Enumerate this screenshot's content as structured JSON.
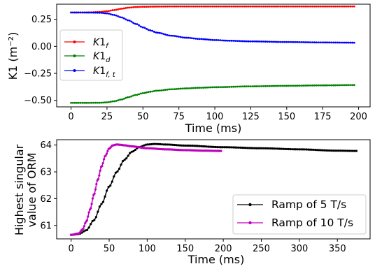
{
  "chart_data": [
    {
      "type": "line",
      "title": "",
      "xlabel": "Time (ms)",
      "ylabel": "K1 (m⁻²)",
      "xlim": [
        -10,
        208
      ],
      "ylim": [
        -0.56,
        0.39
      ],
      "xticks": [
        0,
        25,
        50,
        75,
        100,
        125,
        150,
        175,
        200
      ],
      "yticks": [
        -0.5,
        -0.25,
        0.0,
        0.25
      ],
      "ytick_labels": [
        "−0.50",
        "−0.25",
        "0.00",
        "0.25"
      ],
      "grid": false,
      "legend_position": "center-left",
      "series": [
        {
          "name": "K1_f",
          "color": "#ff0000",
          "marker": "dot",
          "x": [
            0,
            10,
            15,
            20,
            25,
            30,
            35,
            40,
            45,
            50,
            60,
            70,
            80,
            100,
            125,
            150,
            175,
            197
          ],
          "y": [
            0.313,
            0.313,
            0.315,
            0.318,
            0.325,
            0.336,
            0.348,
            0.358,
            0.364,
            0.366,
            0.368,
            0.369,
            0.369,
            0.369,
            0.369,
            0.369,
            0.369,
            0.369
          ]
        },
        {
          "name": "K1_d",
          "color": "#008000",
          "marker": "dot",
          "x": [
            0,
            10,
            20,
            25,
            30,
            35,
            40,
            45,
            50,
            55,
            60,
            70,
            80,
            90,
            100,
            125,
            150,
            175,
            197
          ],
          "y": [
            -0.523,
            -0.523,
            -0.522,
            -0.518,
            -0.508,
            -0.492,
            -0.47,
            -0.45,
            -0.433,
            -0.42,
            -0.41,
            -0.397,
            -0.389,
            -0.383,
            -0.378,
            -0.37,
            -0.365,
            -0.361,
            -0.358
          ]
        },
        {
          "name": "K1_f,t",
          "color": "#0000ff",
          "marker": "dot",
          "x": [
            0,
            10,
            20,
            25,
            30,
            35,
            40,
            45,
            50,
            55,
            60,
            70,
            80,
            90,
            100,
            110,
            125,
            150,
            175,
            197
          ],
          "y": [
            0.313,
            0.313,
            0.311,
            0.305,
            0.29,
            0.268,
            0.24,
            0.208,
            0.176,
            0.148,
            0.126,
            0.098,
            0.08,
            0.068,
            0.058,
            0.052,
            0.046,
            0.04,
            0.036,
            0.034
          ]
        }
      ]
    },
    {
      "type": "line",
      "title": "",
      "xlabel": "Time (ms)",
      "ylabel_lines": [
        "Highest singular",
        "value of ORM"
      ],
      "xlim": [
        -19,
        393
      ],
      "ylim": [
        60.5,
        64.2
      ],
      "xticks": [
        0,
        50,
        100,
        150,
        200,
        250,
        300,
        350
      ],
      "yticks": [
        61,
        62,
        63,
        64
      ],
      "grid": false,
      "legend_position": "lower-right",
      "series": [
        {
          "name": "Ramp of 5 T/s",
          "color": "#000000",
          "marker": "dot",
          "x": [
            0,
            10,
            20,
            30,
            40,
            50,
            60,
            70,
            80,
            90,
            100,
            110,
            125,
            150,
            200,
            250,
            300,
            350,
            375
          ],
          "y": [
            60.65,
            60.68,
            60.82,
            61.2,
            61.8,
            62.45,
            63.0,
            63.45,
            63.75,
            63.93,
            64.02,
            64.04,
            64.02,
            63.98,
            63.92,
            63.88,
            63.84,
            63.79,
            63.78
          ]
        },
        {
          "name": "Ramp of 10 T/s",
          "color": "#bf00bf",
          "marker": "dot",
          "x": [
            0,
            10,
            15,
            20,
            25,
            30,
            35,
            40,
            45,
            50,
            55,
            60,
            65,
            70,
            80,
            100,
            125,
            150,
            175,
            197
          ],
          "y": [
            60.65,
            60.7,
            60.85,
            61.15,
            61.6,
            62.15,
            62.7,
            63.2,
            63.6,
            63.87,
            63.99,
            64.02,
            64.01,
            63.99,
            63.95,
            63.88,
            63.84,
            63.81,
            63.79,
            63.78
          ]
        }
      ]
    }
  ]
}
